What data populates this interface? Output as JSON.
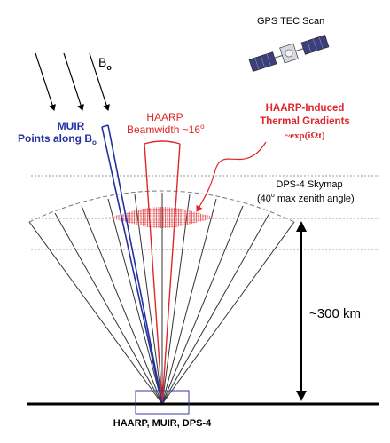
{
  "labels": {
    "gps": "GPS TEC Scan",
    "b_main": "B",
    "b_sub": "o",
    "muir_line1": "MUIR",
    "muir_line2_prefix": "Points along B",
    "muir_line2_sub": "o",
    "haarp_line1": "HAARP",
    "haarp_line2_prefix": "Beamwidth ~16",
    "haarp_line2_sup": "o",
    "thermal_line1": "HAARP-Induced",
    "thermal_line2": "Thermal Gradients",
    "thermal_formula": "~exp(iΩt)",
    "dps_line1": "DPS-4 Skymap",
    "dps_line2_prefix": "(40",
    "dps_line2_sup": "o",
    "dps_line2_suffix": " max zenith angle)",
    "distance": "~300 km",
    "site": "HAARP, MUIR, DPS-4"
  },
  "colors": {
    "muir": "#2431a0",
    "haarp": "#e0262a",
    "rays": "#333333",
    "ground": "#000000",
    "dashed": "#888888",
    "site_box": "#3a3a9a",
    "satellite_panel": "#3b3f7a"
  },
  "icons": {
    "satellite": "satellite-icon"
  }
}
